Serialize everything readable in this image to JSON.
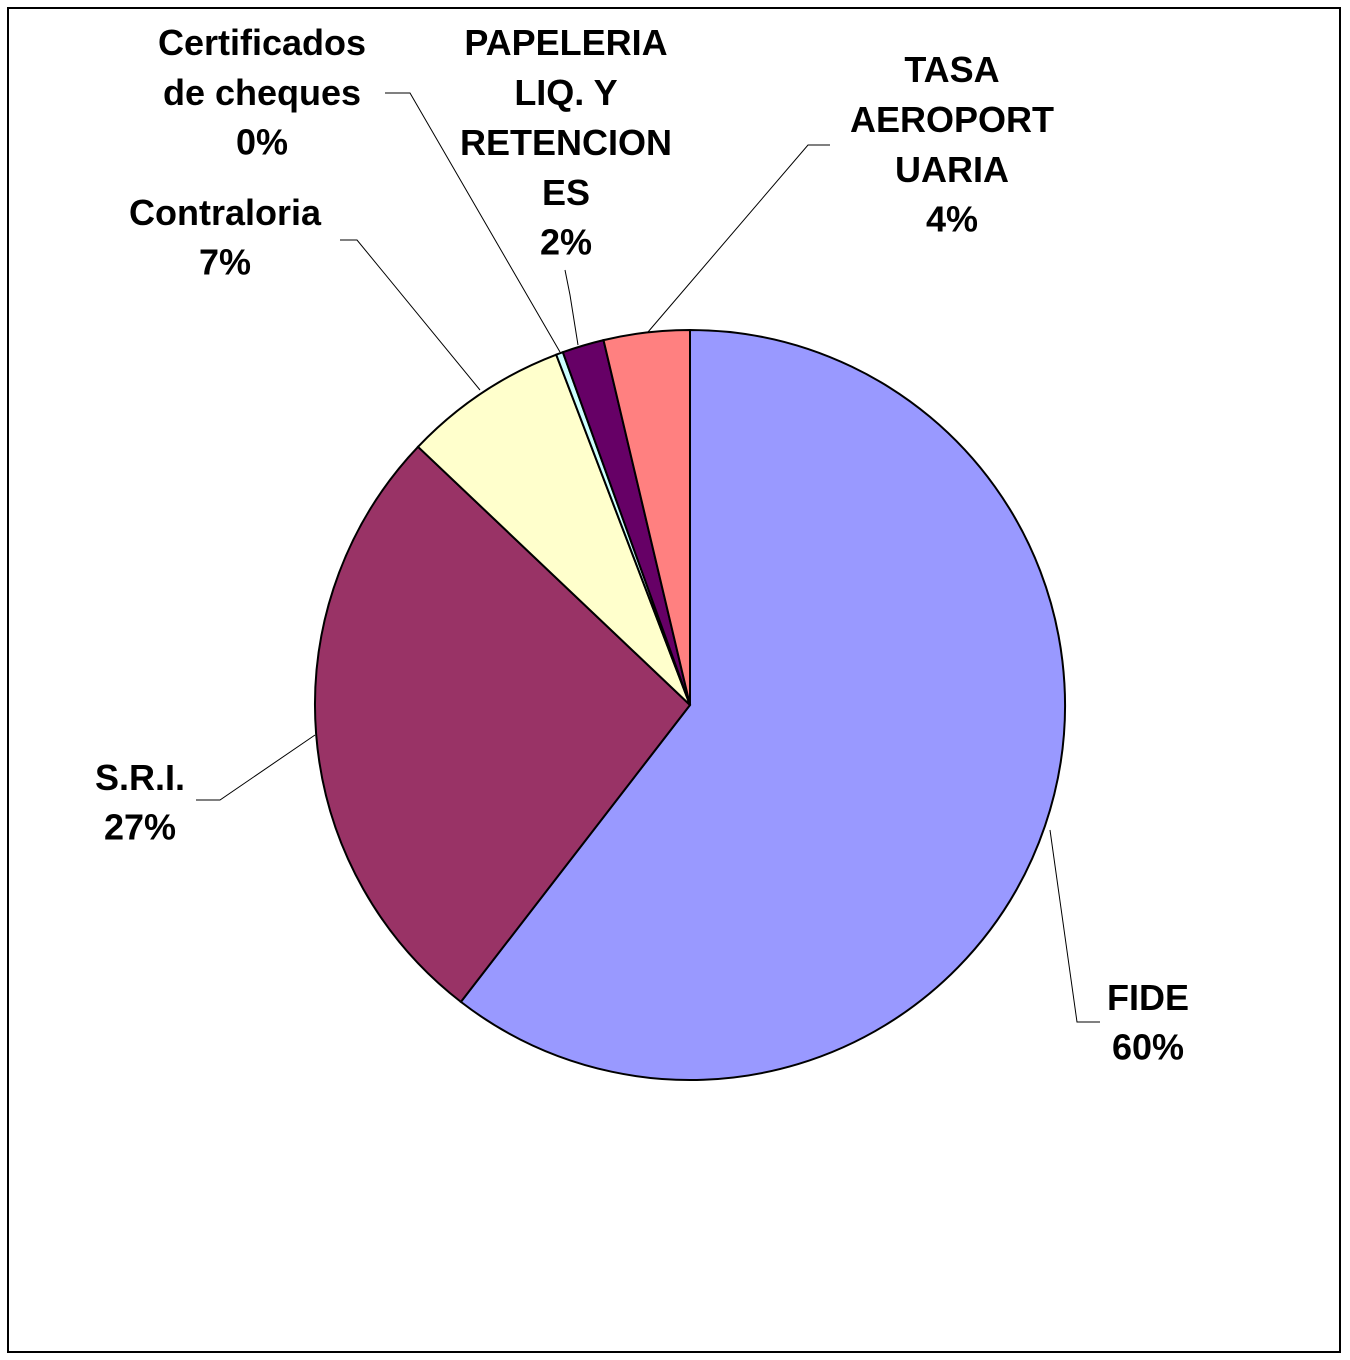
{
  "chart_data": {
    "type": "pie",
    "categories": [
      "FIDE",
      "S.R.I.",
      "Contraloria",
      "Certificados de cheques",
      "PAPELERIA LIQ. Y RETENCIONES",
      "TASA AEROPORTUARIA"
    ],
    "values": [
      60.4,
      26.6,
      7.1,
      0.3,
      1.8,
      3.7
    ],
    "value_labels": [
      "60%",
      "27%",
      "7%",
      "0%",
      "2%",
      "4%"
    ],
    "colors": [
      "#9999ff",
      "#993366",
      "#ffffcc",
      "#ccffff",
      "#660066",
      "#ff8080"
    ]
  }
}
